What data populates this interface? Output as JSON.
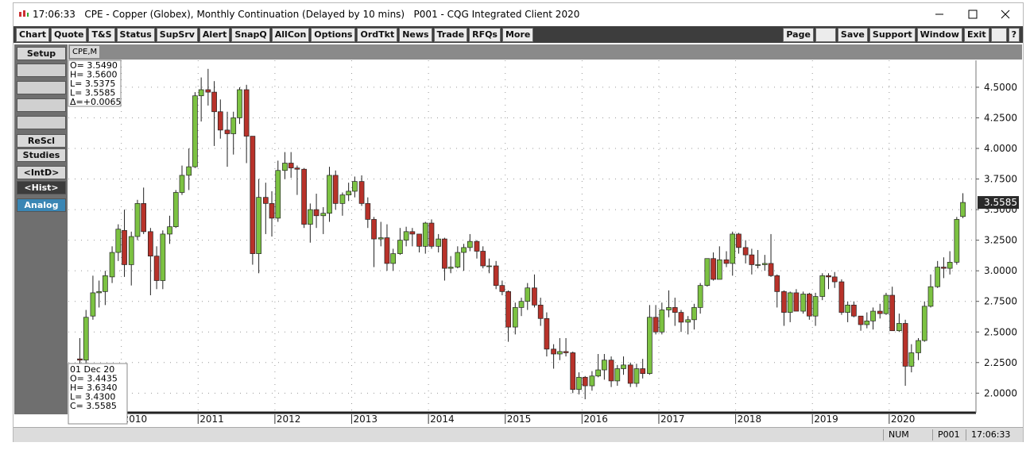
{
  "window": {
    "title": "17:06:33   CPE - Copper (Globex), Monthly Continuation (Delayed by 10 mins)   P001 - CQG Integrated Client 2020"
  },
  "toolbar": {
    "left_buttons": [
      "Chart",
      "Quote",
      "T&S",
      "Status",
      "SupSrv",
      "Alert",
      "SnapQ",
      "AllCon",
      "Options",
      "OrdTkt",
      "News",
      "Trade",
      "RFQs",
      "More"
    ],
    "right_buttons": [
      "Page",
      "Save",
      "Support",
      "Window",
      "Exit",
      "?"
    ]
  },
  "side_panel": {
    "buttons": [
      "Setup",
      "ReScl",
      "Studies",
      "<IntD>",
      "<Hist>",
      "Analog"
    ]
  },
  "tab": "CPE,M",
  "status_bar": [
    "NUM",
    "P001",
    "17:06:33"
  ],
  "cursor_box": [
    "O= 3.5490",
    "H= 3.5600",
    "L= 3.5375",
    "L= 3.5585",
    "Δ=+0.0065"
  ],
  "bar_box": [
    "01 Dec 20",
    "O=   3.4435",
    "H=   3.6340",
    "L=   3.4300",
    "C=   3.5585"
  ],
  "chart_data": {
    "type": "candlestick",
    "up_color": "#7cc242",
    "down_color": "#b8322a",
    "grid": true,
    "last_price": 3.5585,
    "xlim": [
      2009.31,
      2021.13
    ],
    "xticks": [
      2010,
      2011,
      2012,
      2013,
      2014,
      2015,
      2016,
      2017,
      2018,
      2019,
      2020
    ],
    "ylim": [
      1.84,
      4.72
    ],
    "yticks": [
      {
        "value": 2,
        "label": "2.0000"
      },
      {
        "value": 2.25,
        "label": "2.2500"
      },
      {
        "value": 2.5,
        "label": "2.5000"
      },
      {
        "value": 2.75,
        "label": "2.7500"
      },
      {
        "value": 3,
        "label": "3.0000"
      },
      {
        "value": 3.25,
        "label": "3.2500"
      },
      {
        "value": 3.5,
        "label": "3.5000"
      },
      {
        "value": 3.75,
        "label": "3.7500"
      },
      {
        "value": 4,
        "label": "4.0000"
      },
      {
        "value": 4.25,
        "label": "4.2500"
      },
      {
        "value": 4.5,
        "label": "4.5000"
      }
    ],
    "x": [
      2009.46,
      2009.54,
      2009.63,
      2009.71,
      2009.79,
      2009.88,
      2009.96,
      2010.04,
      2010.13,
      2010.21,
      2010.29,
      2010.38,
      2010.46,
      2010.54,
      2010.63,
      2010.71,
      2010.79,
      2010.88,
      2010.96,
      2011.04,
      2011.13,
      2011.21,
      2011.29,
      2011.38,
      2011.46,
      2011.54,
      2011.63,
      2011.71,
      2011.79,
      2011.88,
      2011.96,
      2012.04,
      2012.13,
      2012.21,
      2012.29,
      2012.38,
      2012.46,
      2012.54,
      2012.63,
      2012.71,
      2012.79,
      2012.88,
      2012.96,
      2013.04,
      2013.13,
      2013.21,
      2013.29,
      2013.38,
      2013.46,
      2013.54,
      2013.63,
      2013.71,
      2013.79,
      2013.88,
      2013.96,
      2014.04,
      2014.13,
      2014.21,
      2014.29,
      2014.38,
      2014.46,
      2014.54,
      2014.63,
      2014.71,
      2014.79,
      2014.88,
      2014.96,
      2015.04,
      2015.13,
      2015.21,
      2015.29,
      2015.38,
      2015.46,
      2015.54,
      2015.63,
      2015.71,
      2015.79,
      2015.88,
      2015.96,
      2016.04,
      2016.13,
      2016.21,
      2016.29,
      2016.38,
      2016.46,
      2016.54,
      2016.63,
      2016.71,
      2016.79,
      2016.88,
      2016.96,
      2017.04,
      2017.13,
      2017.21,
      2017.29,
      2017.38,
      2017.46,
      2017.54,
      2017.63,
      2017.71,
      2017.79,
      2017.88,
      2017.96,
      2018.04,
      2018.13,
      2018.21,
      2018.29,
      2018.38,
      2018.46,
      2018.54,
      2018.63,
      2018.71,
      2018.79,
      2018.88,
      2018.96,
      2019.04,
      2019.13,
      2019.21,
      2019.29,
      2019.38,
      2019.46,
      2019.54,
      2019.63,
      2019.71,
      2019.79,
      2019.88,
      2019.96,
      2020.04,
      2020.13,
      2020.21,
      2020.29,
      2020.38,
      2020.46,
      2020.54,
      2020.63,
      2020.71,
      2020.79,
      2020.88,
      2020.96
    ],
    "open": [
      2.28,
      2.27,
      2.63,
      2.82,
      2.83,
      2.95,
      3.15,
      3.33,
      3.05,
      3.28,
      3.55,
      3.32,
      3.12,
      2.92,
      3.3,
      3.36,
      3.64,
      3.78,
      3.85,
      4.43,
      4.48,
      4.46,
      4.3,
      4.15,
      4.12,
      4.25,
      4.48,
      4.1,
      3.14,
      3.6,
      3.55,
      3.43,
      3.82,
      3.88,
      3.84,
      3.83,
      3.38,
      3.5,
      3.45,
      3.47,
      3.78,
      3.55,
      3.62,
      3.65,
      3.73,
      3.55,
      3.42,
      3.26,
      3.27,
      3.06,
      3.14,
      3.25,
      3.32,
      3.3,
      3.2,
      3.39,
      3.2,
      3.26,
      3.02,
      3.03,
      3.15,
      3.19,
      3.24,
      3.16,
      3.04,
      3.04,
      2.88,
      2.83,
      2.54,
      2.7,
      2.75,
      2.86,
      2.72,
      2.61,
      2.36,
      2.32,
      2.34,
      2.33,
      2.03,
      2.13,
      2.06,
      2.14,
      2.19,
      2.27,
      2.1,
      2.2,
      2.23,
      2.08,
      2.2,
      2.16,
      2.62,
      2.5,
      2.68,
      2.7,
      2.66,
      2.58,
      2.6,
      2.7,
      2.88,
      3.1,
      2.93,
      3.09,
      3.06,
      3.3,
      3.19,
      3.13,
      3.05,
      3.05,
      3.06,
      2.96,
      2.83,
      2.66,
      2.82,
      2.67,
      2.81,
      2.63,
      2.79,
      2.96,
      2.95,
      2.91,
      2.66,
      2.72,
      2.63,
      2.56,
      2.59,
      2.67,
      2.65,
      2.8,
      2.51,
      2.57,
      2.22,
      2.33,
      2.43,
      2.71,
      2.87,
      3.03,
      3.02,
      3.07,
      3.4435
    ],
    "high": [
      2.45,
      2.68,
      2.96,
      2.92,
      3.0,
      3.2,
      3.38,
      3.5,
      3.32,
      3.58,
      3.68,
      3.35,
      3.2,
      3.33,
      3.45,
      3.66,
      3.86,
      4.0,
      4.46,
      4.58,
      4.65,
      4.55,
      4.4,
      4.3,
      4.3,
      4.5,
      4.52,
      4.1,
      3.75,
      3.72,
      3.65,
      3.9,
      3.97,
      3.97,
      3.86,
      3.84,
      3.55,
      3.63,
      3.52,
      3.85,
      3.82,
      3.64,
      3.72,
      3.77,
      3.78,
      3.6,
      3.44,
      3.4,
      3.38,
      3.18,
      3.35,
      3.36,
      3.35,
      3.3,
      3.4,
      3.42,
      3.3,
      3.27,
      3.12,
      3.2,
      3.22,
      3.3,
      3.25,
      3.2,
      3.1,
      3.08,
      2.92,
      2.84,
      2.74,
      2.78,
      2.9,
      2.97,
      2.78,
      2.66,
      2.4,
      2.45,
      2.45,
      2.34,
      2.17,
      2.14,
      2.18,
      2.32,
      2.32,
      2.3,
      2.23,
      2.3,
      2.25,
      2.24,
      2.28,
      2.72,
      2.72,
      2.74,
      2.84,
      2.78,
      2.68,
      2.63,
      2.73,
      2.9,
      3.1,
      3.15,
      3.2,
      3.16,
      3.32,
      3.31,
      3.25,
      3.18,
      3.17,
      3.13,
      3.3,
      2.97,
      2.84,
      2.83,
      2.85,
      2.83,
      2.82,
      2.82,
      2.98,
      2.98,
      2.99,
      2.93,
      2.75,
      2.75,
      2.63,
      2.66,
      2.7,
      2.73,
      2.82,
      2.87,
      2.65,
      2.6,
      2.4,
      2.45,
      2.75,
      2.97,
      3.08,
      3.11,
      3.16,
      3.44,
      3.634
    ],
    "low": [
      2.2,
      2.22,
      2.6,
      2.7,
      2.72,
      2.9,
      3.08,
      2.95,
      2.88,
      3.25,
      3.3,
      2.8,
      2.85,
      2.85,
      3.22,
      3.35,
      3.62,
      3.66,
      3.84,
      4.22,
      4.35,
      4.02,
      4.08,
      3.85,
      3.95,
      4.2,
      3.88,
      3.05,
      2.98,
      3.3,
      3.28,
      3.4,
      3.75,
      3.76,
      3.62,
      3.35,
      3.23,
      3.35,
      3.3,
      3.4,
      3.5,
      3.45,
      3.57,
      3.6,
      3.53,
      3.35,
      3.03,
      3.2,
      3.0,
      3.0,
      3.13,
      3.2,
      3.2,
      3.15,
      3.14,
      3.18,
      3.15,
      2.92,
      2.98,
      3.02,
      3.0,
      3.16,
      3.1,
      3.02,
      2.98,
      2.85,
      2.8,
      2.42,
      2.48,
      2.63,
      2.68,
      2.7,
      2.55,
      2.3,
      2.2,
      2.27,
      2.3,
      2.0,
      1.99,
      1.95,
      2.02,
      2.13,
      2.11,
      2.05,
      2.06,
      2.15,
      2.05,
      2.05,
      2.12,
      2.15,
      2.48,
      2.48,
      2.62,
      2.55,
      2.5,
      2.48,
      2.52,
      2.65,
      2.87,
      2.92,
      2.93,
      3.03,
      2.96,
      3.14,
      3.06,
      2.97,
      3.02,
      3.0,
      2.95,
      2.7,
      2.55,
      2.58,
      2.67,
      2.65,
      2.6,
      2.55,
      2.76,
      2.85,
      2.86,
      2.64,
      2.58,
      2.62,
      2.51,
      2.53,
      2.52,
      2.61,
      2.64,
      2.51,
      2.5,
      2.06,
      2.17,
      2.27,
      2.42,
      2.7,
      2.86,
      2.94,
      2.97,
      3.05,
      3.43
    ],
    "close": [
      2.27,
      2.62,
      2.82,
      2.83,
      2.96,
      3.15,
      3.34,
      3.05,
      3.28,
      3.55,
      3.32,
      3.12,
      2.92,
      3.3,
      3.36,
      3.64,
      3.78,
      3.85,
      4.43,
      4.48,
      4.46,
      4.3,
      4.15,
      4.12,
      4.25,
      4.48,
      4.1,
      3.14,
      3.6,
      3.55,
      3.43,
      3.82,
      3.88,
      3.84,
      3.83,
      3.38,
      3.5,
      3.45,
      3.47,
      3.78,
      3.55,
      3.62,
      3.65,
      3.73,
      3.55,
      3.42,
      3.26,
      3.27,
      3.06,
      3.14,
      3.25,
      3.32,
      3.3,
      3.2,
      3.39,
      3.2,
      3.26,
      3.02,
      3.03,
      3.15,
      3.19,
      3.24,
      3.16,
      3.04,
      3.04,
      2.88,
      2.83,
      2.54,
      2.7,
      2.75,
      2.86,
      2.72,
      2.61,
      2.36,
      2.32,
      2.34,
      2.33,
      2.03,
      2.13,
      2.06,
      2.14,
      2.19,
      2.27,
      2.1,
      2.2,
      2.23,
      2.08,
      2.2,
      2.16,
      2.62,
      2.5,
      2.68,
      2.7,
      2.66,
      2.58,
      2.6,
      2.7,
      2.88,
      3.1,
      2.93,
      3.09,
      3.06,
      3.3,
      3.19,
      3.13,
      3.05,
      3.05,
      3.06,
      2.96,
      2.83,
      2.66,
      2.82,
      2.67,
      2.81,
      2.63,
      2.79,
      2.96,
      2.95,
      2.91,
      2.66,
      2.72,
      2.63,
      2.56,
      2.59,
      2.67,
      2.65,
      2.8,
      2.51,
      2.57,
      2.22,
      2.33,
      2.43,
      2.71,
      2.87,
      3.03,
      3.02,
      3.07,
      3.42,
      3.5585
    ]
  }
}
